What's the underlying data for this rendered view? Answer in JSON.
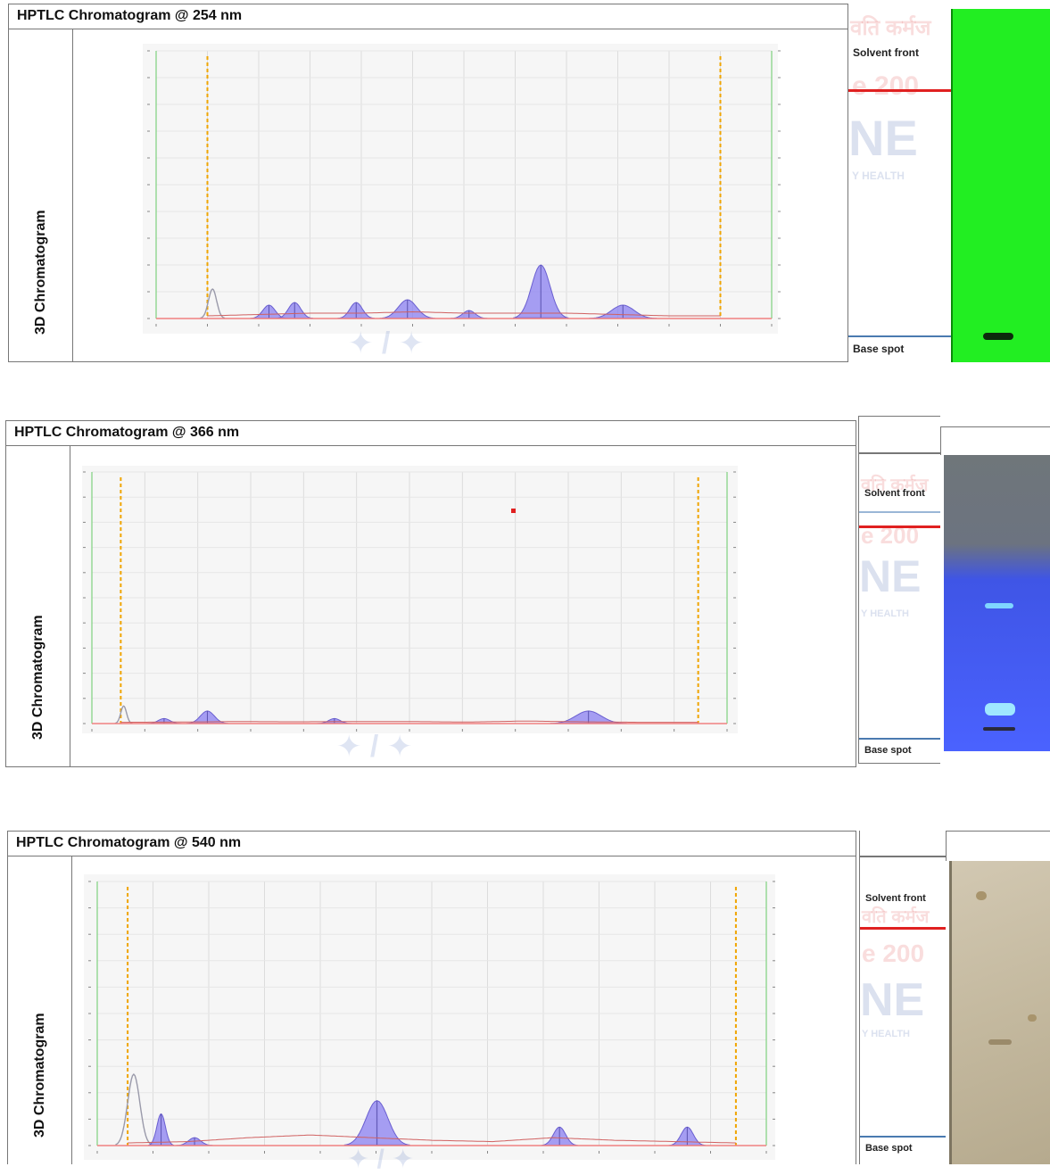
{
  "panels": [
    {
      "title": "HPTLC Chromatogram @ 254 nm",
      "side_label": "3D Chromatogram",
      "solvent_front_label": "Solvent front",
      "base_spot_label": "Base spot",
      "colors": {
        "plate": "#22ee22",
        "band": "#0c2a0c",
        "solvent_line": "#e02020",
        "base_line": "#4a7ab0"
      }
    },
    {
      "title": "HPTLC Chromatogram @ 366 nm",
      "side_label": "3D Chromatogram",
      "solvent_front_label": "Solvent front",
      "base_spot_label": "Base spot",
      "colors": {
        "plate_top": "#70777c",
        "plate": "#4a62ff",
        "band": "#9fe8ff",
        "solvent_line": "#e02020",
        "base_line": "#4a7ab0"
      }
    },
    {
      "title": "HPTLC Chromatogram @ 540 nm",
      "side_label": "3D Chromatogram",
      "solvent_front_label": "Solvent front",
      "base_spot_label": "Base spot",
      "colors": {
        "plate": "#c7bca4",
        "band": "#9a8a6a",
        "solvent_line": "#e02020",
        "base_line": "#4a7ab0"
      }
    }
  ],
  "chart_data": [
    {
      "type": "area",
      "xlim": [
        -0.1,
        1.1
      ],
      "ylim": [
        0,
        1
      ],
      "dashed_lines": [
        0,
        1
      ],
      "series": [
        {
          "role": "baseline_trace",
          "color": "#d06060",
          "x": [
            0.0,
            0.1,
            0.2,
            0.3,
            0.4,
            0.5,
            0.6,
            0.7,
            0.8,
            0.9,
            1.0
          ],
          "y": [
            0.01,
            0.015,
            0.02,
            0.02,
            0.025,
            0.02,
            0.02,
            0.02,
            0.015,
            0.01,
            0.01
          ]
        },
        {
          "role": "peaks",
          "color": "#8a7ff0",
          "centers": [
            0.01,
            0.12,
            0.17,
            0.29,
            0.39,
            0.51,
            0.65,
            0.81
          ],
          "heights": [
            0.11,
            0.05,
            0.06,
            0.06,
            0.07,
            0.03,
            0.2,
            0.05
          ],
          "widths": [
            0.008,
            0.012,
            0.012,
            0.012,
            0.018,
            0.012,
            0.018,
            0.022
          ],
          "filled": [
            false,
            true,
            true,
            true,
            true,
            true,
            true,
            true
          ]
        }
      ]
    },
    {
      "type": "area",
      "xlim": [
        -0.05,
        1.05
      ],
      "ylim": [
        0,
        1
      ],
      "dashed_lines": [
        0,
        1
      ],
      "series": [
        {
          "role": "baseline_trace",
          "color": "#d06060",
          "x": [
            0.0,
            0.1,
            0.2,
            0.3,
            0.4,
            0.5,
            0.6,
            0.7,
            0.8,
            0.9,
            1.0
          ],
          "y": [
            0.005,
            0.006,
            0.008,
            0.007,
            0.008,
            0.008,
            0.006,
            0.01,
            0.007,
            0.005,
            0.005
          ]
        },
        {
          "role": "peaks",
          "color": "#8a7ff0",
          "centers": [
            0.005,
            0.075,
            0.15,
            0.37,
            0.81
          ],
          "heights": [
            0.07,
            0.02,
            0.05,
            0.02,
            0.05
          ],
          "widths": [
            0.005,
            0.01,
            0.012,
            0.01,
            0.022
          ],
          "filled": [
            false,
            true,
            true,
            true,
            true
          ]
        }
      ]
    },
    {
      "type": "area",
      "xlim": [
        -0.05,
        1.05
      ],
      "ylim": [
        0,
        1
      ],
      "dashed_lines": [
        0,
        1
      ],
      "series": [
        {
          "role": "baseline_trace",
          "color": "#d06060",
          "x": [
            0.0,
            0.1,
            0.2,
            0.3,
            0.4,
            0.5,
            0.6,
            0.7,
            0.8,
            0.9,
            1.0
          ],
          "y": [
            0.01,
            0.015,
            0.03,
            0.04,
            0.03,
            0.02,
            0.015,
            0.03,
            0.02,
            0.015,
            0.01
          ]
        },
        {
          "role": "peaks",
          "color": "#8a7ff0",
          "centers": [
            0.01,
            0.055,
            0.11,
            0.41,
            0.71,
            0.92
          ],
          "heights": [
            0.27,
            0.12,
            0.03,
            0.17,
            0.07,
            0.07
          ],
          "widths": [
            0.01,
            0.007,
            0.01,
            0.018,
            0.01,
            0.01
          ],
          "filled": [
            false,
            true,
            true,
            true,
            true,
            true
          ]
        }
      ]
    }
  ]
}
